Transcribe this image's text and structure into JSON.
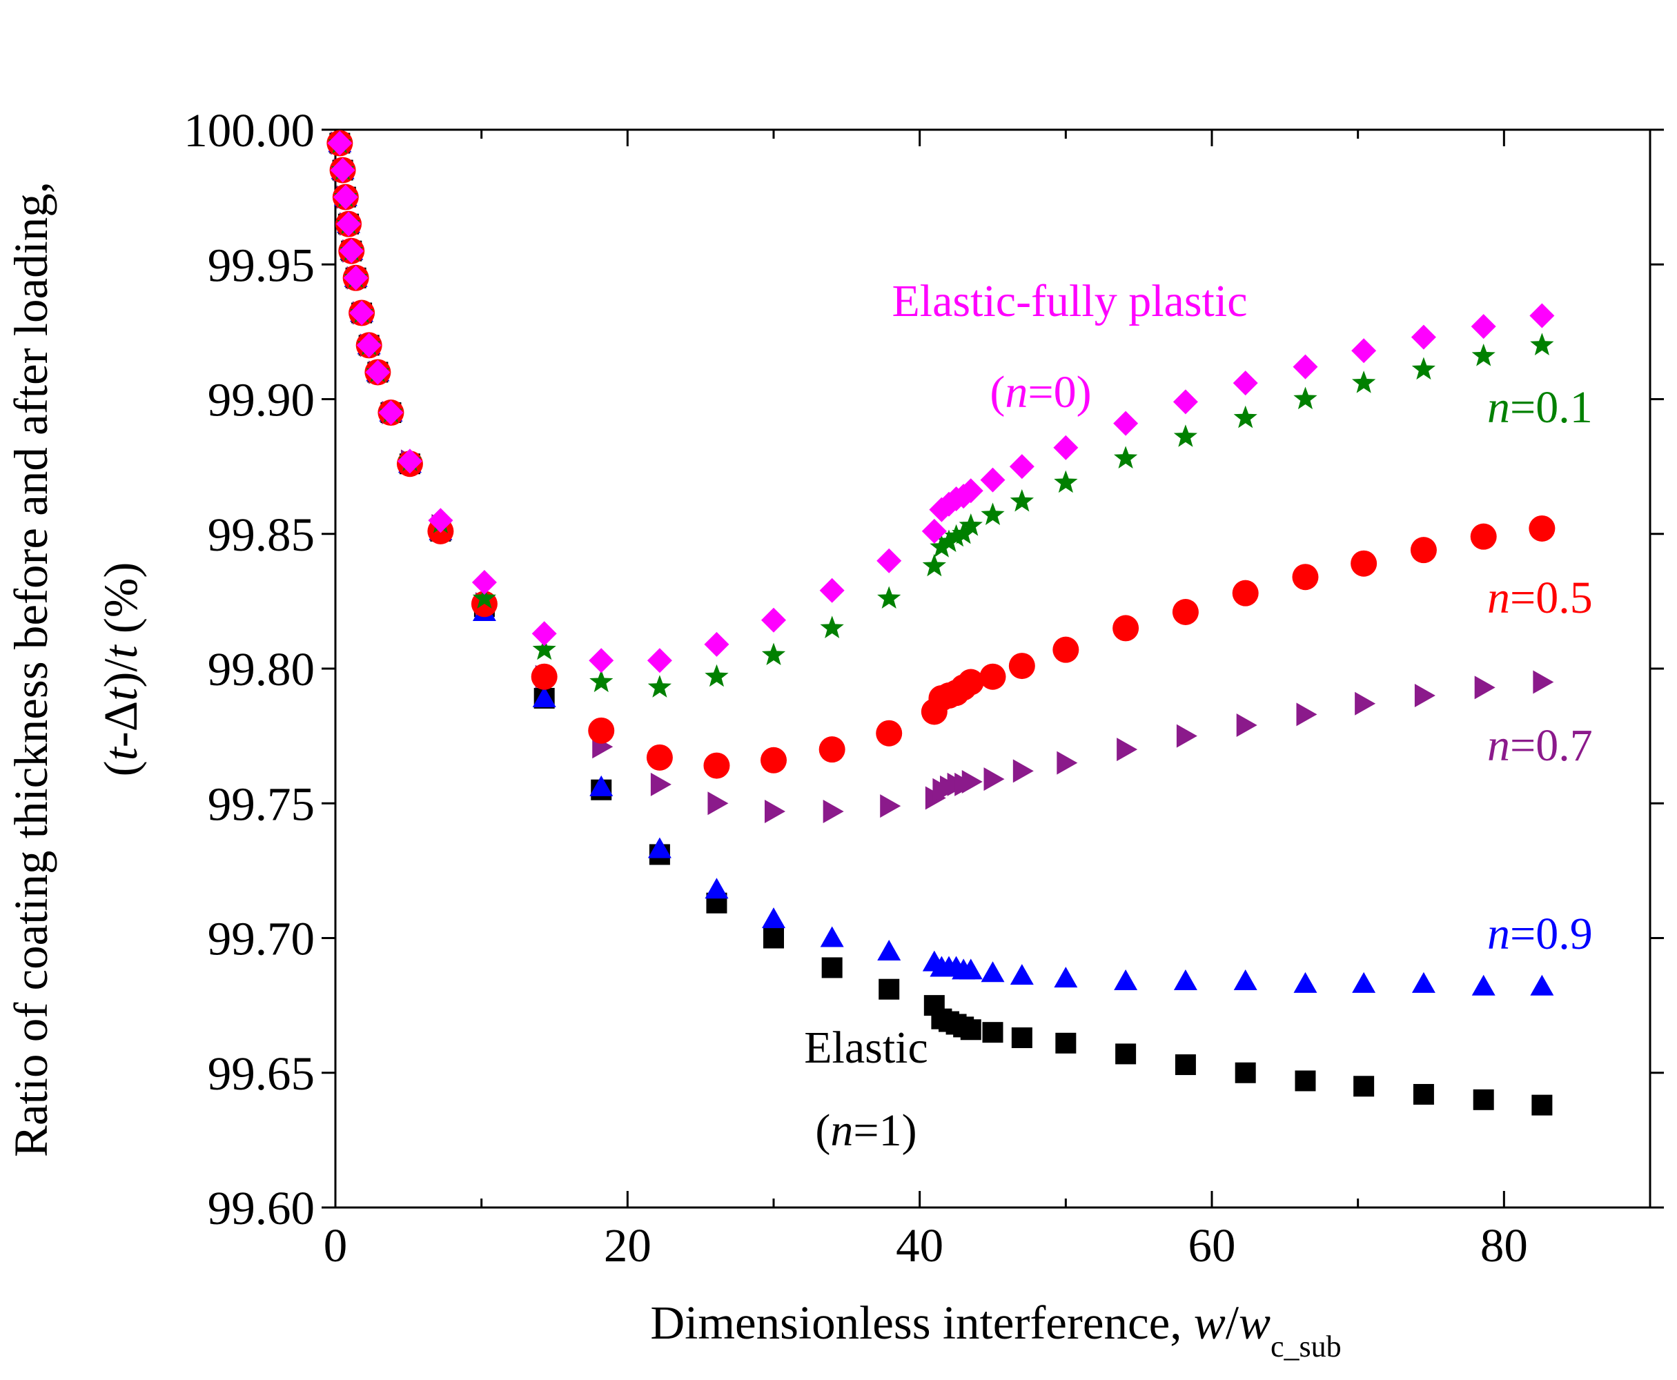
{
  "chart_data": {
    "type": "scatter",
    "title": "",
    "xlabel": {
      "text": "Dimensionless interference, ",
      "var1": "w",
      "slash": "/",
      "var2": "w",
      "subscript": "c_sub"
    },
    "ylabel": {
      "line1": "Ratio of coating thickness before and after loading,",
      "l2_open": "(",
      "l2_t1": "t",
      "l2_mid": "-Δ",
      "l2_t2": "t",
      "l2_close": ")/",
      "l2_t3": "t",
      "l2_unit": " (%)"
    },
    "xlim": [
      0,
      90
    ],
    "ylim": [
      99.6,
      100.0
    ],
    "xticks": [
      {
        "value": 0,
        "label": "0"
      },
      {
        "value": 20,
        "label": "20"
      },
      {
        "value": 40,
        "label": "40"
      },
      {
        "value": 60,
        "label": "60"
      },
      {
        "value": 80,
        "label": "80"
      }
    ],
    "yticks": [
      {
        "value": 99.6,
        "label": "99.60"
      },
      {
        "value": 99.65,
        "label": "99.65"
      },
      {
        "value": 99.7,
        "label": "99.70"
      },
      {
        "value": 99.75,
        "label": "99.75"
      },
      {
        "value": 99.8,
        "label": "99.80"
      },
      {
        "value": 99.85,
        "label": "99.85"
      },
      {
        "value": 99.9,
        "label": "99.90"
      },
      {
        "value": 99.95,
        "label": "99.95"
      },
      {
        "value": 100.0,
        "label": "100.00"
      }
    ],
    "grid": false,
    "series": [
      {
        "key": "n1",
        "marker": "square",
        "color": "#000000",
        "x": [
          0.3,
          0.5,
          0.7,
          0.9,
          1.1,
          1.4,
          1.8,
          2.3,
          2.9,
          3.8,
          5.1,
          7.2,
          10.2,
          14.3,
          18.2,
          22.2,
          26.1,
          30.0,
          34.0,
          37.9,
          41.0,
          41.5,
          42.0,
          42.5,
          43.0,
          43.5,
          45.0,
          47.0,
          50.0,
          54.1,
          58.2,
          62.3,
          66.4,
          70.4,
          74.5,
          78.6,
          82.6
        ],
        "y": [
          99.995,
          99.985,
          99.975,
          99.965,
          99.955,
          99.945,
          99.932,
          99.92,
          99.91,
          99.895,
          99.876,
          99.851,
          99.823,
          99.789,
          99.755,
          99.731,
          99.713,
          99.7,
          99.689,
          99.681,
          99.675,
          99.67,
          99.669,
          99.668,
          99.667,
          99.666,
          99.665,
          99.663,
          99.661,
          99.657,
          99.653,
          99.65,
          99.647,
          99.645,
          99.642,
          99.64,
          99.638
        ]
      },
      {
        "key": "n09",
        "marker": "triangle-up",
        "color": "#0000ff",
        "x": [
          0.3,
          0.5,
          0.7,
          0.9,
          1.1,
          1.4,
          1.8,
          2.3,
          2.9,
          3.8,
          5.1,
          7.2,
          10.2,
          14.3,
          18.2,
          22.2,
          26.1,
          30.0,
          34.0,
          37.9,
          41.0,
          41.5,
          42.0,
          42.5,
          43.0,
          43.5,
          45.0,
          47.0,
          50.0,
          54.1,
          58.2,
          62.3,
          66.4,
          70.4,
          74.5,
          78.6,
          82.6
        ],
        "y": [
          99.995,
          99.985,
          99.975,
          99.965,
          99.955,
          99.945,
          99.932,
          99.92,
          99.91,
          99.895,
          99.876,
          99.851,
          99.821,
          99.789,
          99.756,
          99.733,
          99.718,
          99.707,
          99.7,
          99.695,
          99.691,
          99.689,
          99.689,
          99.689,
          99.688,
          99.688,
          99.687,
          99.686,
          99.685,
          99.684,
          99.684,
          99.684,
          99.683,
          99.683,
          99.683,
          99.682,
          99.682
        ]
      },
      {
        "key": "n07",
        "marker": "triangle-right",
        "color": "#8b1a8b",
        "x": [
          0.3,
          0.5,
          0.7,
          0.9,
          1.1,
          1.4,
          1.8,
          2.3,
          2.9,
          3.8,
          5.1,
          7.2,
          10.2,
          14.3,
          18.2,
          22.2,
          26.1,
          30.0,
          34.0,
          37.9,
          41.0,
          41.5,
          42.0,
          42.5,
          43.0,
          43.5,
          45.0,
          47.0,
          50.0,
          54.1,
          58.2,
          62.3,
          66.4,
          70.4,
          74.5,
          78.6,
          82.6
        ],
        "y": [
          99.995,
          99.985,
          99.975,
          99.965,
          99.955,
          99.945,
          99.932,
          99.92,
          99.91,
          99.895,
          99.877,
          99.853,
          99.824,
          99.797,
          99.771,
          99.757,
          99.75,
          99.747,
          99.747,
          99.749,
          99.752,
          99.755,
          99.756,
          99.757,
          99.757,
          99.758,
          99.759,
          99.762,
          99.765,
          99.77,
          99.775,
          99.779,
          99.783,
          99.787,
          99.79,
          99.793,
          99.795
        ]
      },
      {
        "key": "n05",
        "marker": "circle",
        "color": "#ff0000",
        "x": [
          0.3,
          0.5,
          0.7,
          0.9,
          1.1,
          1.4,
          1.8,
          2.3,
          2.9,
          3.8,
          5.1,
          7.2,
          10.2,
          14.3,
          18.2,
          22.2,
          26.1,
          30.0,
          34.0,
          37.9,
          41.0,
          41.5,
          42.0,
          42.5,
          43.0,
          43.5,
          45.0,
          47.0,
          50.0,
          54.1,
          58.2,
          62.3,
          66.4,
          70.4,
          74.5,
          78.6,
          82.6
        ],
        "y": [
          99.995,
          99.985,
          99.975,
          99.965,
          99.955,
          99.945,
          99.932,
          99.92,
          99.91,
          99.895,
          99.876,
          99.851,
          99.824,
          99.797,
          99.777,
          99.767,
          99.764,
          99.766,
          99.77,
          99.776,
          99.784,
          99.789,
          99.79,
          99.791,
          99.793,
          99.795,
          99.797,
          99.801,
          99.807,
          99.815,
          99.821,
          99.828,
          99.834,
          99.839,
          99.844,
          99.849,
          99.852
        ]
      },
      {
        "key": "n01",
        "marker": "star",
        "color": "#008000",
        "x": [
          0.3,
          0.5,
          0.7,
          0.9,
          1.1,
          1.4,
          1.8,
          2.3,
          2.9,
          3.8,
          5.1,
          7.2,
          10.2,
          14.3,
          18.2,
          22.2,
          26.1,
          30.0,
          34.0,
          37.9,
          41.0,
          41.5,
          42.0,
          42.5,
          43.0,
          43.5,
          45.0,
          47.0,
          50.0,
          54.1,
          58.2,
          62.3,
          66.4,
          70.4,
          74.5,
          78.6,
          82.6
        ],
        "y": [
          99.995,
          99.985,
          99.975,
          99.965,
          99.955,
          99.945,
          99.932,
          99.92,
          99.91,
          99.895,
          99.877,
          99.854,
          99.826,
          99.807,
          99.795,
          99.793,
          99.797,
          99.805,
          99.815,
          99.826,
          99.838,
          99.845,
          99.847,
          99.849,
          99.85,
          99.853,
          99.857,
          99.862,
          99.869,
          99.878,
          99.886,
          99.893,
          99.9,
          99.906,
          99.911,
          99.916,
          99.92
        ]
      },
      {
        "key": "n0",
        "marker": "diamond",
        "color": "#ff00ff",
        "x": [
          0.3,
          0.5,
          0.7,
          0.9,
          1.1,
          1.4,
          1.8,
          2.3,
          2.9,
          3.8,
          5.1,
          7.2,
          10.2,
          14.3,
          18.2,
          22.2,
          26.1,
          30.0,
          34.0,
          37.9,
          41.0,
          41.5,
          42.0,
          42.5,
          43.0,
          43.5,
          45.0,
          47.0,
          50.0,
          54.1,
          58.2,
          62.3,
          66.4,
          70.4,
          74.5,
          78.6,
          82.6
        ],
        "y": [
          99.995,
          99.985,
          99.975,
          99.965,
          99.955,
          99.945,
          99.932,
          99.92,
          99.91,
          99.895,
          99.877,
          99.855,
          99.832,
          99.813,
          99.803,
          99.803,
          99.809,
          99.818,
          99.829,
          99.84,
          99.851,
          99.859,
          99.861,
          99.863,
          99.864,
          99.866,
          99.87,
          99.875,
          99.882,
          99.891,
          99.899,
          99.906,
          99.912,
          99.918,
          99.923,
          99.927,
          99.931
        ]
      }
    ],
    "annotations": [
      {
        "key": "efp",
        "text": "Elastic-fully plastic",
        "color": "#ff00ff"
      },
      {
        "key": "efp_n",
        "open": "(",
        "var": "n",
        "rest": "=0)",
        "color": "#ff00ff"
      },
      {
        "key": "n01",
        "var": "n",
        "rest": "=0.1",
        "color": "#008000"
      },
      {
        "key": "n05",
        "var": "n",
        "rest": "=0.5",
        "color": "#ff0000"
      },
      {
        "key": "n07",
        "var": "n",
        "rest": "=0.7",
        "color": "#8b1a8b"
      },
      {
        "key": "n09",
        "var": "n",
        "rest": "=0.9",
        "color": "#0000ff"
      },
      {
        "key": "elastic",
        "text": "Elastic",
        "color": "#000000"
      },
      {
        "key": "elastic_n",
        "open": "(",
        "var": "n",
        "rest": "=1)",
        "color": "#000000"
      }
    ]
  }
}
